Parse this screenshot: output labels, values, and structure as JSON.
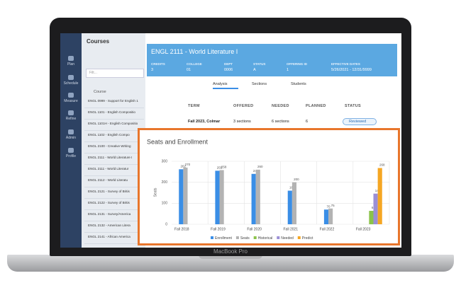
{
  "device": {
    "label": "MacBook Pro"
  },
  "sidebar": {
    "items": [
      "Plan",
      "Schedule",
      "Measure",
      "Refine",
      "Admin",
      "Profile"
    ]
  },
  "courses": {
    "title": "Courses",
    "search": "Filt...",
    "column": "Course",
    "rows": [
      "ENGL 0999 - Support for English 1",
      "ENGL 1101 - English Compositio",
      "ENGL 1101H - English Compositio",
      "ENGL 1102 - English Compo",
      "ENGL 2100 - Creative Writing",
      "ENGL 2111 - World Literature I",
      "ENGL 2111 - World Literatur",
      "ENGL 2112 - World Literatu",
      "ENGL 2121 - Survey of Britis",
      "ENGL 2122 - Survey of Britis",
      "ENGL 2131 - Survey/America",
      "ENGL 2132 - American Litera",
      "ENGL 2141 - African America"
    ]
  },
  "course_detail": {
    "title": "ENGL 2111 - World Literature I",
    "fields": [
      {
        "label": "CREDITS",
        "value": "3"
      },
      {
        "label": "COLLEGE",
        "value": "01"
      },
      {
        "label": "DEPT",
        "value": "0006"
      },
      {
        "label": "STATUS",
        "value": "A"
      },
      {
        "label": "OFFERING ID",
        "value": "1"
      },
      {
        "label": "EFFECTIVE DATES",
        "value": "5/26/2021 - 12/31/9999"
      }
    ],
    "tabs": [
      "Analysis",
      "Sections",
      "Students"
    ],
    "table": {
      "headers": [
        "TERM",
        "OFFERED",
        "NEEDED",
        "PLANNED",
        "STATUS"
      ],
      "rows": [
        [
          "Fall 2023, Colmar",
          "3 sections",
          "6 sections",
          "6",
          "Reviewed"
        ]
      ]
    }
  },
  "chart_data": {
    "type": "bar",
    "title": "Seats and Enrollment",
    "y_label": "Seats",
    "categories": [
      "Fall 2018",
      "Fall 2019",
      "Fall 2020",
      "Fall 2021",
      "Fall 2022",
      "Fall 2023"
    ],
    "series": [
      {
        "name": "Enrollment",
        "color": "#3a8ee6",
        "values": [
          262,
          255,
          240,
          160,
          70,
          null
        ]
      },
      {
        "name": "Seats",
        "color": "#b3b3b3",
        "values": [
          270,
          258,
          260,
          200,
          75,
          null
        ]
      },
      {
        "name": "Historical",
        "color": "#8bc34a",
        "values": [
          null,
          null,
          null,
          null,
          null,
          64
        ]
      },
      {
        "name": "Needed",
        "color": "#9b8fd6",
        "values": [
          null,
          null,
          null,
          null,
          null,
          146
        ]
      },
      {
        "name": "Predict",
        "color": "#f5a623",
        "values": [
          null,
          null,
          null,
          null,
          null,
          268
        ]
      }
    ],
    "ylim": [
      0,
      300
    ],
    "yticks": [
      0,
      100,
      200,
      300
    ],
    "grid": true
  }
}
